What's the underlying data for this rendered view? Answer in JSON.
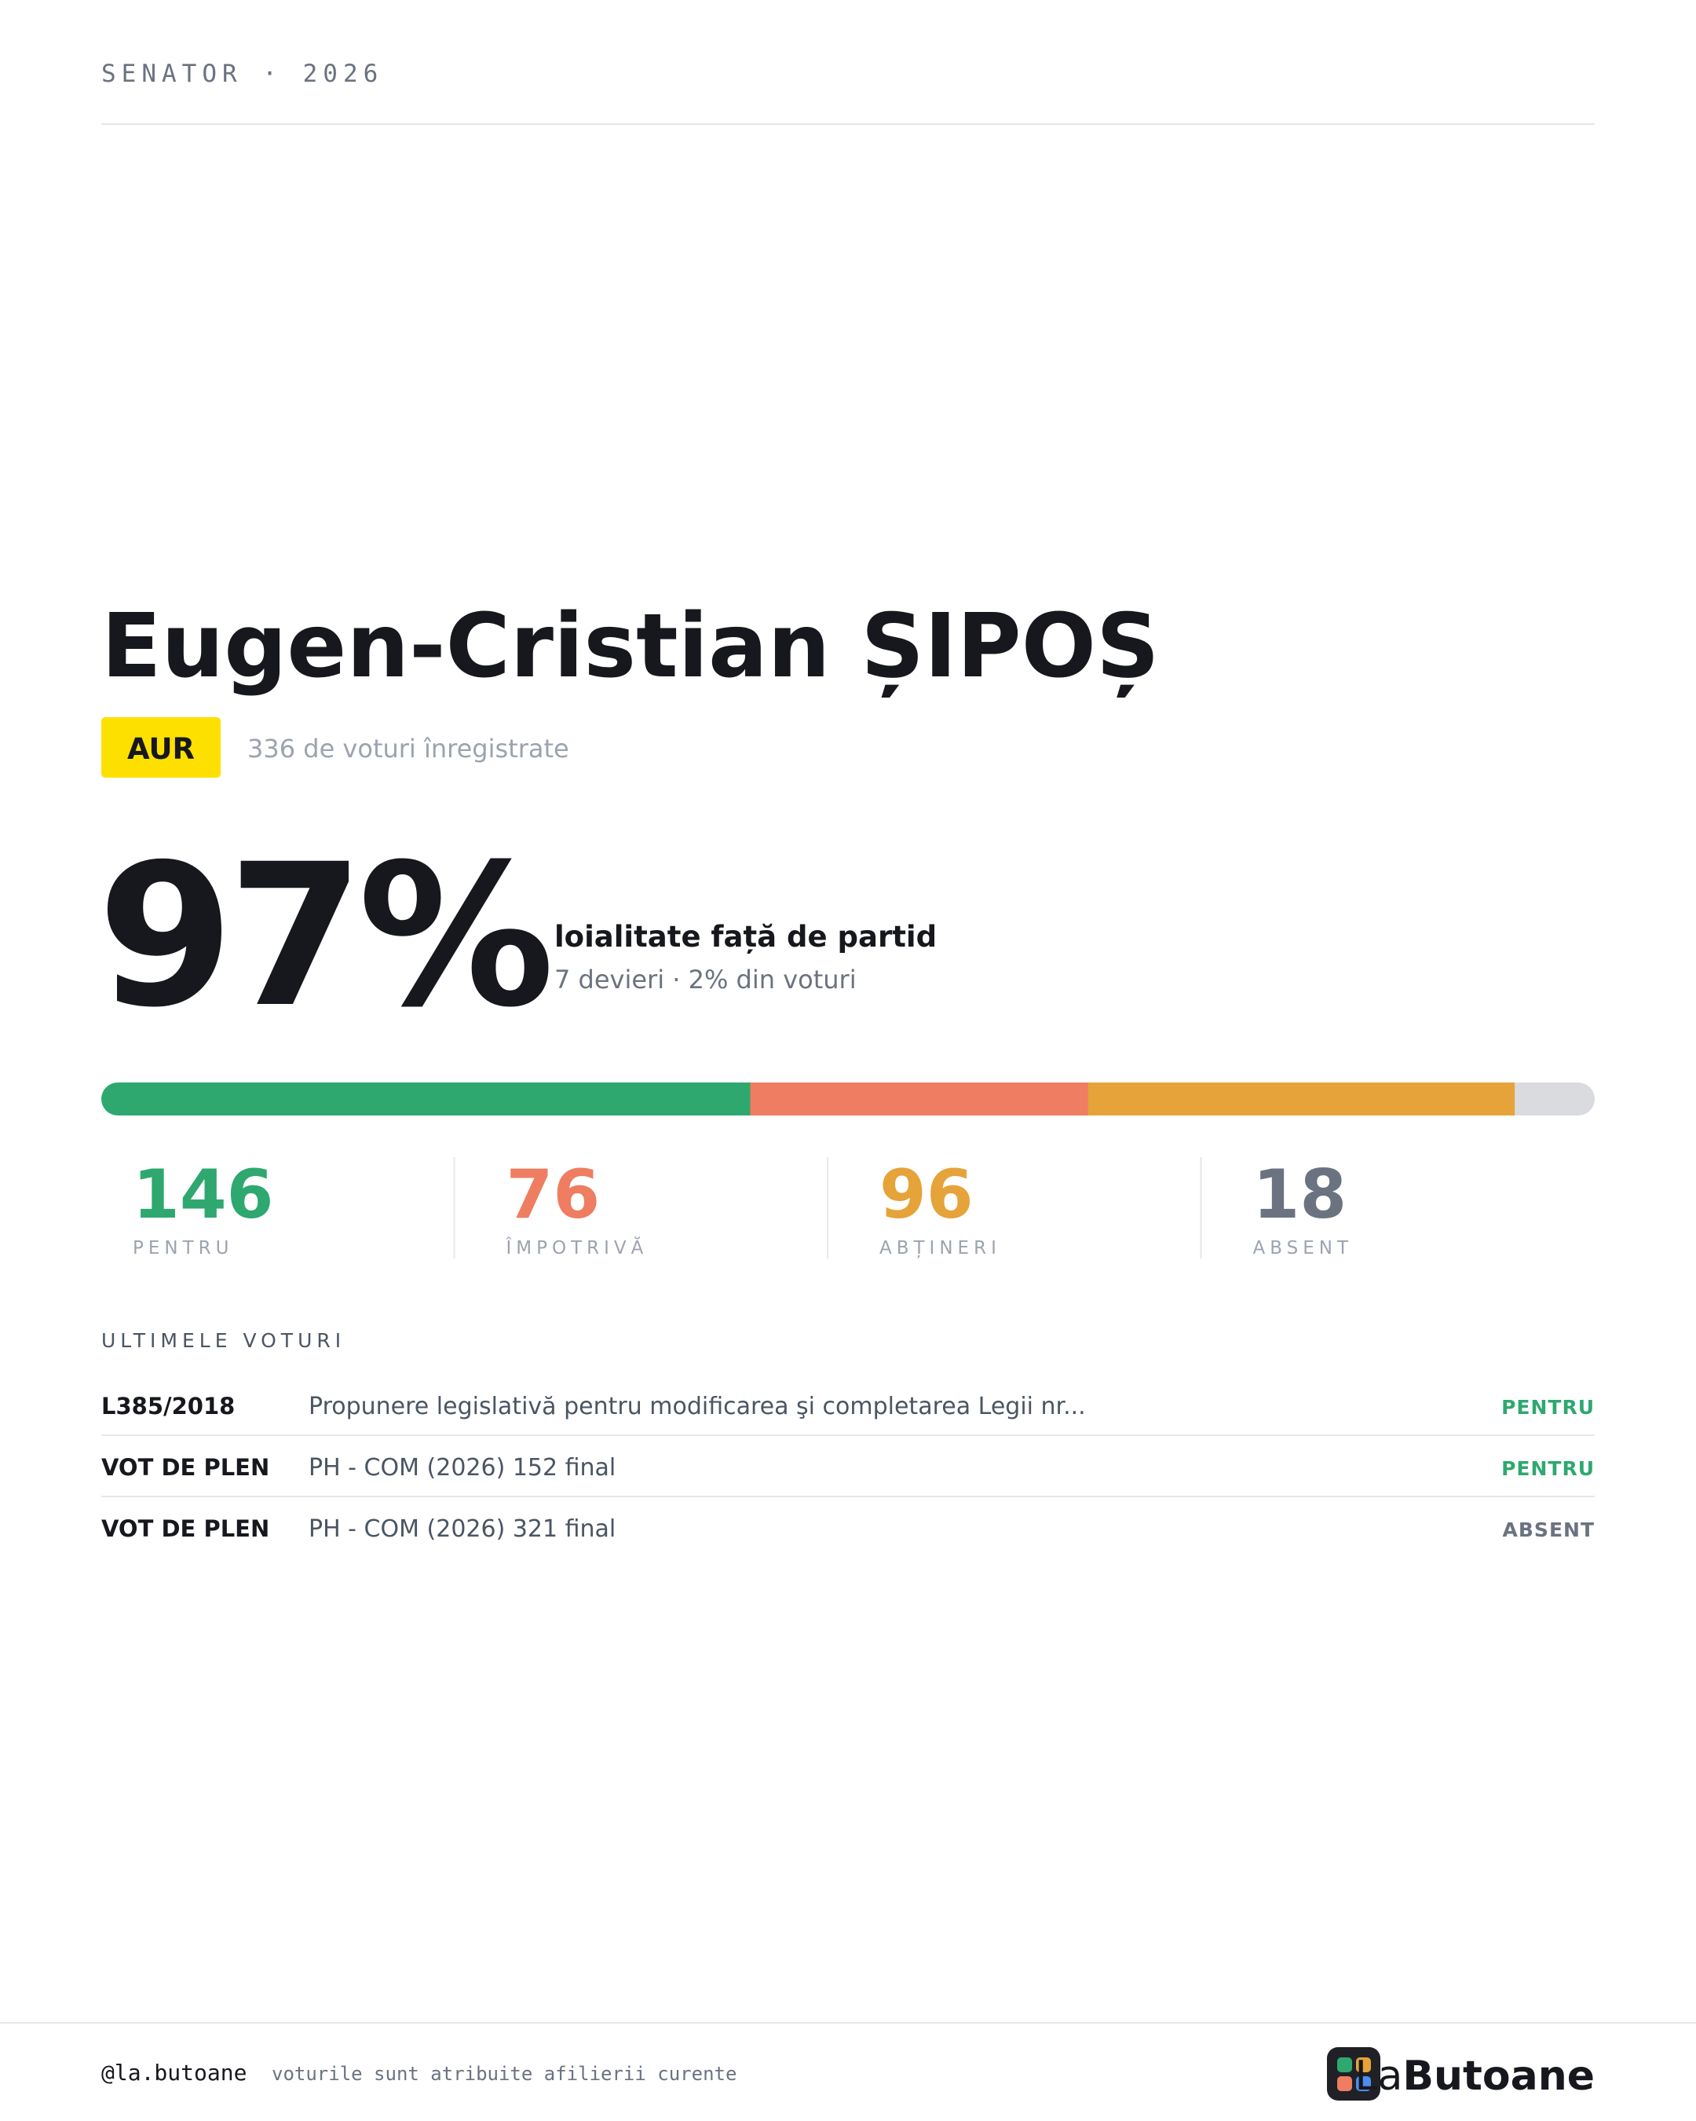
{
  "header": {
    "kicker": "SENATOR · 2026"
  },
  "profile": {
    "name": "Eugen-Cristian ȘIPOȘ",
    "party": "AUR",
    "party_color": "#fde000",
    "votes_note": "336 de voturi înregistrate"
  },
  "loyalty": {
    "percent": "97%",
    "label": "loialitate față de partid",
    "detail": "7 devieri · 2% din voturi"
  },
  "tally": [
    {
      "value": 146,
      "label": "PENTRU",
      "color": "#2ea86f"
    },
    {
      "value": 76,
      "label": "ÎMPOTRIVĂ",
      "color": "#ee7d62"
    },
    {
      "value": 96,
      "label": "ABȚINERI",
      "color": "#e5a33a"
    },
    {
      "value": 18,
      "label": "ABSENT",
      "color": "#6b7280",
      "bar_color": "#d9dbdf"
    }
  ],
  "recent": {
    "title": "ULTIMELE VOTURI",
    "rows": [
      {
        "code": "L385/2018",
        "description": "Propunere legislativă pentru modificarea şi completarea Legii nr...",
        "vote": "PENTRU"
      },
      {
        "code": "VOT DE PLEN",
        "description": "PH - COM (2026) 152 final",
        "vote": "PENTRU"
      },
      {
        "code": "VOT DE PLEN",
        "description": "PH - COM (2026) 321 final",
        "vote": "ABSENT"
      }
    ]
  },
  "footer": {
    "handle": "@la.butoane",
    "note": "voturile sunt atribuite afilierii curente",
    "brand_prefix": "La",
    "brand_name": "Butoane"
  }
}
